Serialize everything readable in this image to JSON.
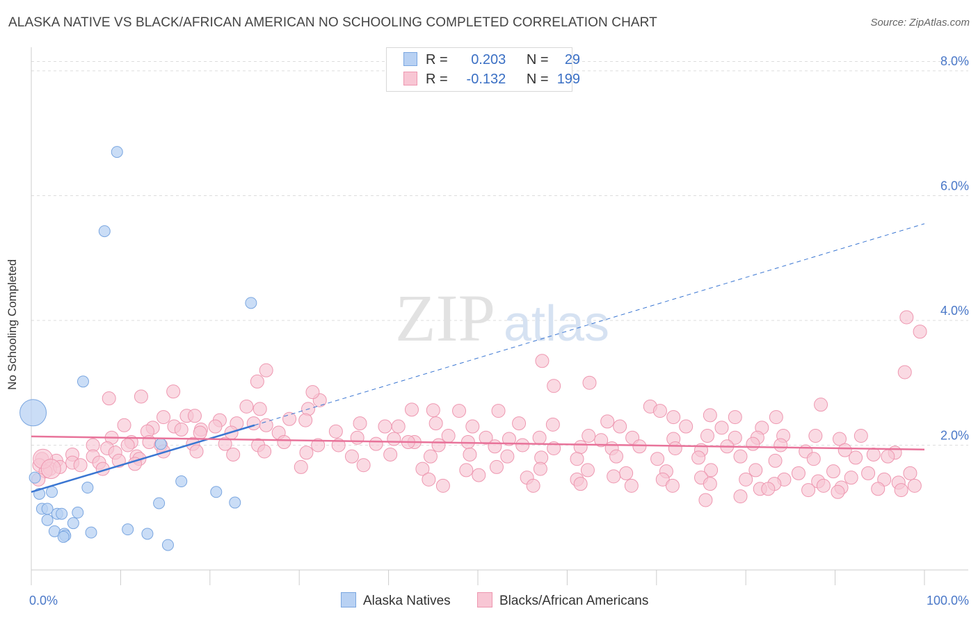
{
  "title": "ALASKA NATIVE VS BLACK/AFRICAN AMERICAN NO SCHOOLING COMPLETED CORRELATION CHART",
  "source": "Source: ZipAtlas.com",
  "watermark": {
    "zip": "ZIP",
    "atlas": "atlas"
  },
  "colors": {
    "blue_fill": "#b8d1f3",
    "blue_stroke": "#7aa6e0",
    "blue_line": "#3a76d2",
    "pink_fill": "#f8c6d4",
    "pink_stroke": "#ee97b0",
    "pink_line": "#e8739a",
    "axis_label": "#4a78c8",
    "grid": "#dddddd"
  },
  "legend": {
    "r_label": "R =",
    "n_label": "N =",
    "blue": {
      "r": "0.203",
      "n": "29"
    },
    "pink": {
      "r": "-0.132",
      "n": "199"
    }
  },
  "chart_data": {
    "type": "scatter",
    "title": "ALASKA NATIVE VS BLACK/AFRICAN AMERICAN NO SCHOOLING COMPLETED CORRELATION CHART",
    "xlabel": "",
    "ylabel": "No Schooling Completed",
    "xlim": [
      0,
      100
    ],
    "ylim": [
      0,
      8.3
    ],
    "x_tick_labels": [
      "0.0%",
      "100.0%"
    ],
    "y_ticks": [
      2,
      4,
      6,
      8
    ],
    "y_tick_labels": [
      "2.0%",
      "4.0%",
      "6.0%",
      "8.0%"
    ],
    "grid": true,
    "legend_position": "top-center",
    "series": [
      {
        "name": "Alaska Natives",
        "color": "#b8d1f3",
        "trend": {
          "x": [
            0,
            25
          ],
          "y": [
            1.25,
            2.32
          ],
          "dashed_extension_to": [
            100,
            5.55
          ]
        },
        "points": [
          [
            9.6,
            6.7
          ],
          [
            8.2,
            5.43
          ],
          [
            24.6,
            4.28
          ],
          [
            5.8,
            3.02
          ],
          [
            14.5,
            2.02
          ],
          [
            16.8,
            1.42
          ],
          [
            6.3,
            1.32
          ],
          [
            2.3,
            1.25
          ],
          [
            0.9,
            1.22
          ],
          [
            20.7,
            1.25
          ],
          [
            14.3,
            1.07
          ],
          [
            22.8,
            1.08
          ],
          [
            1.2,
            0.98
          ],
          [
            1.8,
            0.98
          ],
          [
            5.2,
            0.92
          ],
          [
            2.9,
            0.9
          ],
          [
            3.4,
            0.9
          ],
          [
            1.8,
            0.8
          ],
          [
            4.7,
            0.75
          ],
          [
            10.8,
            0.65
          ],
          [
            2.6,
            0.62
          ],
          [
            6.7,
            0.6
          ],
          [
            13.0,
            0.58
          ],
          [
            3.7,
            0.58
          ],
          [
            3.8,
            0.55
          ],
          [
            3.6,
            0.53
          ],
          [
            15.3,
            0.4
          ],
          [
            0.4,
            1.48
          ]
        ],
        "point_sizes": [
          8,
          8,
          8,
          8,
          8,
          8,
          8,
          8,
          8,
          8,
          8,
          8,
          8,
          8,
          8,
          8,
          8,
          8,
          8,
          8,
          8,
          8,
          8,
          8,
          8,
          8,
          8,
          8
        ],
        "large_point": [
          0.2,
          2.52
        ]
      },
      {
        "name": "Blacks/African Americans",
        "color": "#f8c6d4",
        "trend": {
          "x": [
            0,
            100
          ],
          "y": [
            2.14,
            1.93
          ]
        },
        "points": [
          [
            98.0,
            4.05
          ],
          [
            99.5,
            3.82
          ],
          [
            97.8,
            3.17
          ],
          [
            26.3,
            3.2
          ],
          [
            25.3,
            3.02
          ],
          [
            58.5,
            2.95
          ],
          [
            62.5,
            3.0
          ],
          [
            57.2,
            3.35
          ],
          [
            88.4,
            2.65
          ],
          [
            12.3,
            2.78
          ],
          [
            15.9,
            2.86
          ],
          [
            8.7,
            2.75
          ],
          [
            32.3,
            2.72
          ],
          [
            31.5,
            2.85
          ],
          [
            31.0,
            2.58
          ],
          [
            24.1,
            2.62
          ],
          [
            25.6,
            2.58
          ],
          [
            42.6,
            2.57
          ],
          [
            45.0,
            2.56
          ],
          [
            47.9,
            2.55
          ],
          [
            52.3,
            2.55
          ],
          [
            69.3,
            2.62
          ],
          [
            70.4,
            2.55
          ],
          [
            71.9,
            2.45
          ],
          [
            76.0,
            2.48
          ],
          [
            78.8,
            2.45
          ],
          [
            83.4,
            2.45
          ],
          [
            17.4,
            2.47
          ],
          [
            14.8,
            2.45
          ],
          [
            18.3,
            2.47
          ],
          [
            21.1,
            2.4
          ],
          [
            28.9,
            2.42
          ],
          [
            30.7,
            2.4
          ],
          [
            36.8,
            2.35
          ],
          [
            39.6,
            2.3
          ],
          [
            41.1,
            2.3
          ],
          [
            45.3,
            2.35
          ],
          [
            49.4,
            2.3
          ],
          [
            54.6,
            2.35
          ],
          [
            58.4,
            2.33
          ],
          [
            64.5,
            2.38
          ],
          [
            65.9,
            2.3
          ],
          [
            73.3,
            2.3
          ],
          [
            77.3,
            2.28
          ],
          [
            81.8,
            2.28
          ],
          [
            10.4,
            2.32
          ],
          [
            13.6,
            2.28
          ],
          [
            16.0,
            2.3
          ],
          [
            19.0,
            2.25
          ],
          [
            20.6,
            2.3
          ],
          [
            23.0,
            2.35
          ],
          [
            24.9,
            2.35
          ],
          [
            26.3,
            2.32
          ],
          [
            13.0,
            2.22
          ],
          [
            16.8,
            2.25
          ],
          [
            18.9,
            2.2
          ],
          [
            22.4,
            2.2
          ],
          [
            27.7,
            2.2
          ],
          [
            34.1,
            2.22
          ],
          [
            36.5,
            2.12
          ],
          [
            40.6,
            2.1
          ],
          [
            42.9,
            2.05
          ],
          [
            46.7,
            2.15
          ],
          [
            50.9,
            2.12
          ],
          [
            53.5,
            2.1
          ],
          [
            56.9,
            2.12
          ],
          [
            62.4,
            2.15
          ],
          [
            63.8,
            2.08
          ],
          [
            67.3,
            2.12
          ],
          [
            71.9,
            2.1
          ],
          [
            75.7,
            2.15
          ],
          [
            78.8,
            2.12
          ],
          [
            81.3,
            2.12
          ],
          [
            84.2,
            2.15
          ],
          [
            87.8,
            2.15
          ],
          [
            90.5,
            2.1
          ],
          [
            92.9,
            2.15
          ],
          [
            9.0,
            2.12
          ],
          [
            11.2,
            2.05
          ],
          [
            13.2,
            2.05
          ],
          [
            6.9,
            2.0
          ],
          [
            8.5,
            1.95
          ],
          [
            10.8,
            2.0
          ],
          [
            14.5,
            2.0
          ],
          [
            18.1,
            2.02
          ],
          [
            21.7,
            2.02
          ],
          [
            25.4,
            2.0
          ],
          [
            28.3,
            2.05
          ],
          [
            32.1,
            2.0
          ],
          [
            34.4,
            2.0
          ],
          [
            38.6,
            2.02
          ],
          [
            42.2,
            2.05
          ],
          [
            45.6,
            2.0
          ],
          [
            48.9,
            2.05
          ],
          [
            51.9,
            1.98
          ],
          [
            55.0,
            2.0
          ],
          [
            58.5,
            1.95
          ],
          [
            61.5,
            1.97
          ],
          [
            65.0,
            1.95
          ],
          [
            68.1,
            1.98
          ],
          [
            72.1,
            1.95
          ],
          [
            75.0,
            1.92
          ],
          [
            77.9,
            1.98
          ],
          [
            80.8,
            2.02
          ],
          [
            83.9,
            2.0
          ],
          [
            86.7,
            1.9
          ],
          [
            91.1,
            1.92
          ],
          [
            94.3,
            1.85
          ],
          [
            96.7,
            1.88
          ],
          [
            4.6,
            1.85
          ],
          [
            6.9,
            1.82
          ],
          [
            9.4,
            1.88
          ],
          [
            11.8,
            1.82
          ],
          [
            14.8,
            1.9
          ],
          [
            18.5,
            1.9
          ],
          [
            22.6,
            1.85
          ],
          [
            26.1,
            1.9
          ],
          [
            30.8,
            1.88
          ],
          [
            35.9,
            1.82
          ],
          [
            40.2,
            1.85
          ],
          [
            44.7,
            1.82
          ],
          [
            49.1,
            1.85
          ],
          [
            53.3,
            1.82
          ],
          [
            57.1,
            1.8
          ],
          [
            61.1,
            1.78
          ],
          [
            65.5,
            1.82
          ],
          [
            70.1,
            1.78
          ],
          [
            74.7,
            1.8
          ],
          [
            79.4,
            1.82
          ],
          [
            83.3,
            1.75
          ],
          [
            87.6,
            1.78
          ],
          [
            92.3,
            1.8
          ],
          [
            95.9,
            1.82
          ],
          [
            1.2,
            1.78
          ],
          [
            2.8,
            1.75
          ],
          [
            4.6,
            1.72
          ],
          [
            7.6,
            1.72
          ],
          [
            9.8,
            1.75
          ],
          [
            12.1,
            1.78
          ],
          [
            0.9,
            1.68
          ],
          [
            2.1,
            1.62
          ],
          [
            3.2,
            1.65
          ],
          [
            5.5,
            1.68
          ],
          [
            8.0,
            1.62
          ],
          [
            11.6,
            1.7
          ],
          [
            30.2,
            1.65
          ],
          [
            37.2,
            1.68
          ],
          [
            43.8,
            1.62
          ],
          [
            48.7,
            1.6
          ],
          [
            52.1,
            1.65
          ],
          [
            57.0,
            1.62
          ],
          [
            62.3,
            1.6
          ],
          [
            66.6,
            1.55
          ],
          [
            71.1,
            1.58
          ],
          [
            76.1,
            1.6
          ],
          [
            81.1,
            1.6
          ],
          [
            85.9,
            1.55
          ],
          [
            89.8,
            1.58
          ],
          [
            93.7,
            1.55
          ],
          [
            98.4,
            1.55
          ],
          [
            1.6,
            1.58
          ],
          [
            0.8,
            1.45
          ],
          [
            44.5,
            1.45
          ],
          [
            50.1,
            1.52
          ],
          [
            55.5,
            1.48
          ],
          [
            61.1,
            1.45
          ],
          [
            65.2,
            1.5
          ],
          [
            70.7,
            1.45
          ],
          [
            75.0,
            1.48
          ],
          [
            80.0,
            1.45
          ],
          [
            84.3,
            1.45
          ],
          [
            88.1,
            1.42
          ],
          [
            91.8,
            1.48
          ],
          [
            95.5,
            1.45
          ],
          [
            97.1,
            1.4
          ],
          [
            46.1,
            1.35
          ],
          [
            56.2,
            1.35
          ],
          [
            61.5,
            1.38
          ],
          [
            67.2,
            1.35
          ],
          [
            71.8,
            1.35
          ],
          [
            76.0,
            1.38
          ],
          [
            83.2,
            1.38
          ],
          [
            88.7,
            1.35
          ],
          [
            90.7,
            1.32
          ],
          [
            94.8,
            1.3
          ],
          [
            81.6,
            1.3
          ],
          [
            87.0,
            1.28
          ],
          [
            90.3,
            1.25
          ],
          [
            97.4,
            1.28
          ],
          [
            79.4,
            1.18
          ],
          [
            75.5,
            1.12
          ],
          [
            98.9,
            1.35
          ],
          [
            82.5,
            1.3
          ]
        ],
        "large_points": [
          [
            1.3,
            1.78
          ],
          [
            2.2,
            1.62
          ]
        ]
      }
    ]
  }
}
